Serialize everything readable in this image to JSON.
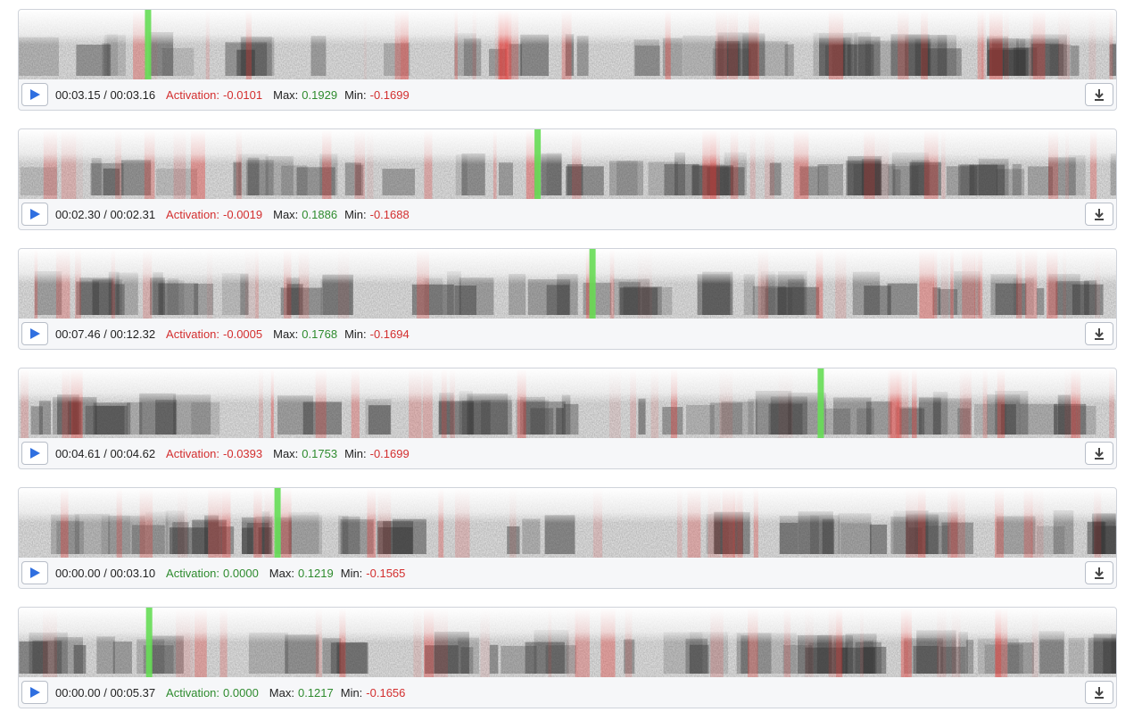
{
  "labels": {
    "activation": "Activation:",
    "max": "Max:",
    "min": "Min:"
  },
  "clips": [
    {
      "time": "00:03.15 / 00:03.16",
      "activation": "-0.0101",
      "max": "0.1929",
      "min": "-0.1699"
    },
    {
      "time": "00:02.30 / 00:02.31",
      "activation": "-0.0019",
      "max": "0.1886",
      "min": "-0.1688"
    },
    {
      "time": "00:07.46 / 00:12.32",
      "activation": "-0.0005",
      "max": "0.1768",
      "min": "-0.1694"
    },
    {
      "time": "00:04.61 / 00:04.62",
      "activation": "-0.0393",
      "max": "0.1753",
      "min": "-0.1699"
    },
    {
      "time": "00:00.00 / 00:03.10",
      "activation": "0.0000",
      "max": "0.1219",
      "min": "-0.1565"
    },
    {
      "time": "00:00.00 / 00:05.37",
      "activation": "0.0000",
      "max": "0.1217",
      "min": "-0.1656"
    }
  ]
}
